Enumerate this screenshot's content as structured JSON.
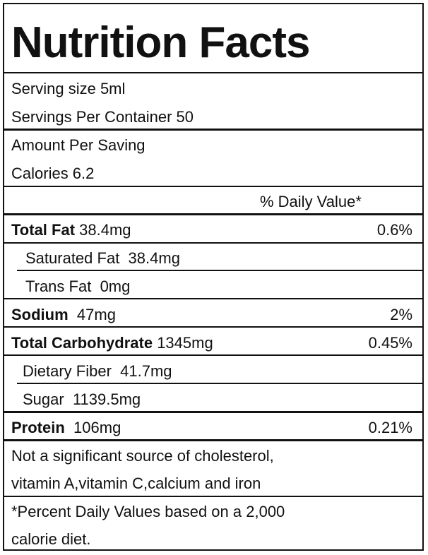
{
  "title": "Nutrition Facts",
  "serving_size": "Serving size 5ml",
  "servings_per_container": "Servings Per Container 50",
  "amount_per_serving": "Amount Per Saving",
  "calories": "Calories  6.2",
  "daily_value_header": "% Daily Value*",
  "rows": [
    {
      "name": "Total Fat",
      "amount": "38.4mg",
      "dv": "0.6%"
    },
    {
      "name": "Saturated Fat",
      "amount": "38.4mg",
      "dv": ""
    },
    {
      "name": "Trans Fat",
      "amount": "0mg",
      "dv": ""
    },
    {
      "name": "Sodium",
      "amount": "47mg",
      "dv": "2%"
    },
    {
      "name": "Total Carbohydrate",
      "amount": "1345mg",
      "dv": "0.45%"
    },
    {
      "name": "Dietary Fiber",
      "amount": "41.7mg",
      "dv": ""
    },
    {
      "name": "Sugar",
      "amount": "1139.5mg",
      "dv": ""
    },
    {
      "name": "Protein",
      "amount": "106mg",
      "dv": "0.21%"
    }
  ],
  "note_line1": "Not a significant source of cholesterol,",
  "note_line2": "vitamin A,vitamin C,calcium and iron",
  "footnote_line1": "*Percent Daily Values based on a 2,000",
  "footnote_line2": "calorie diet."
}
